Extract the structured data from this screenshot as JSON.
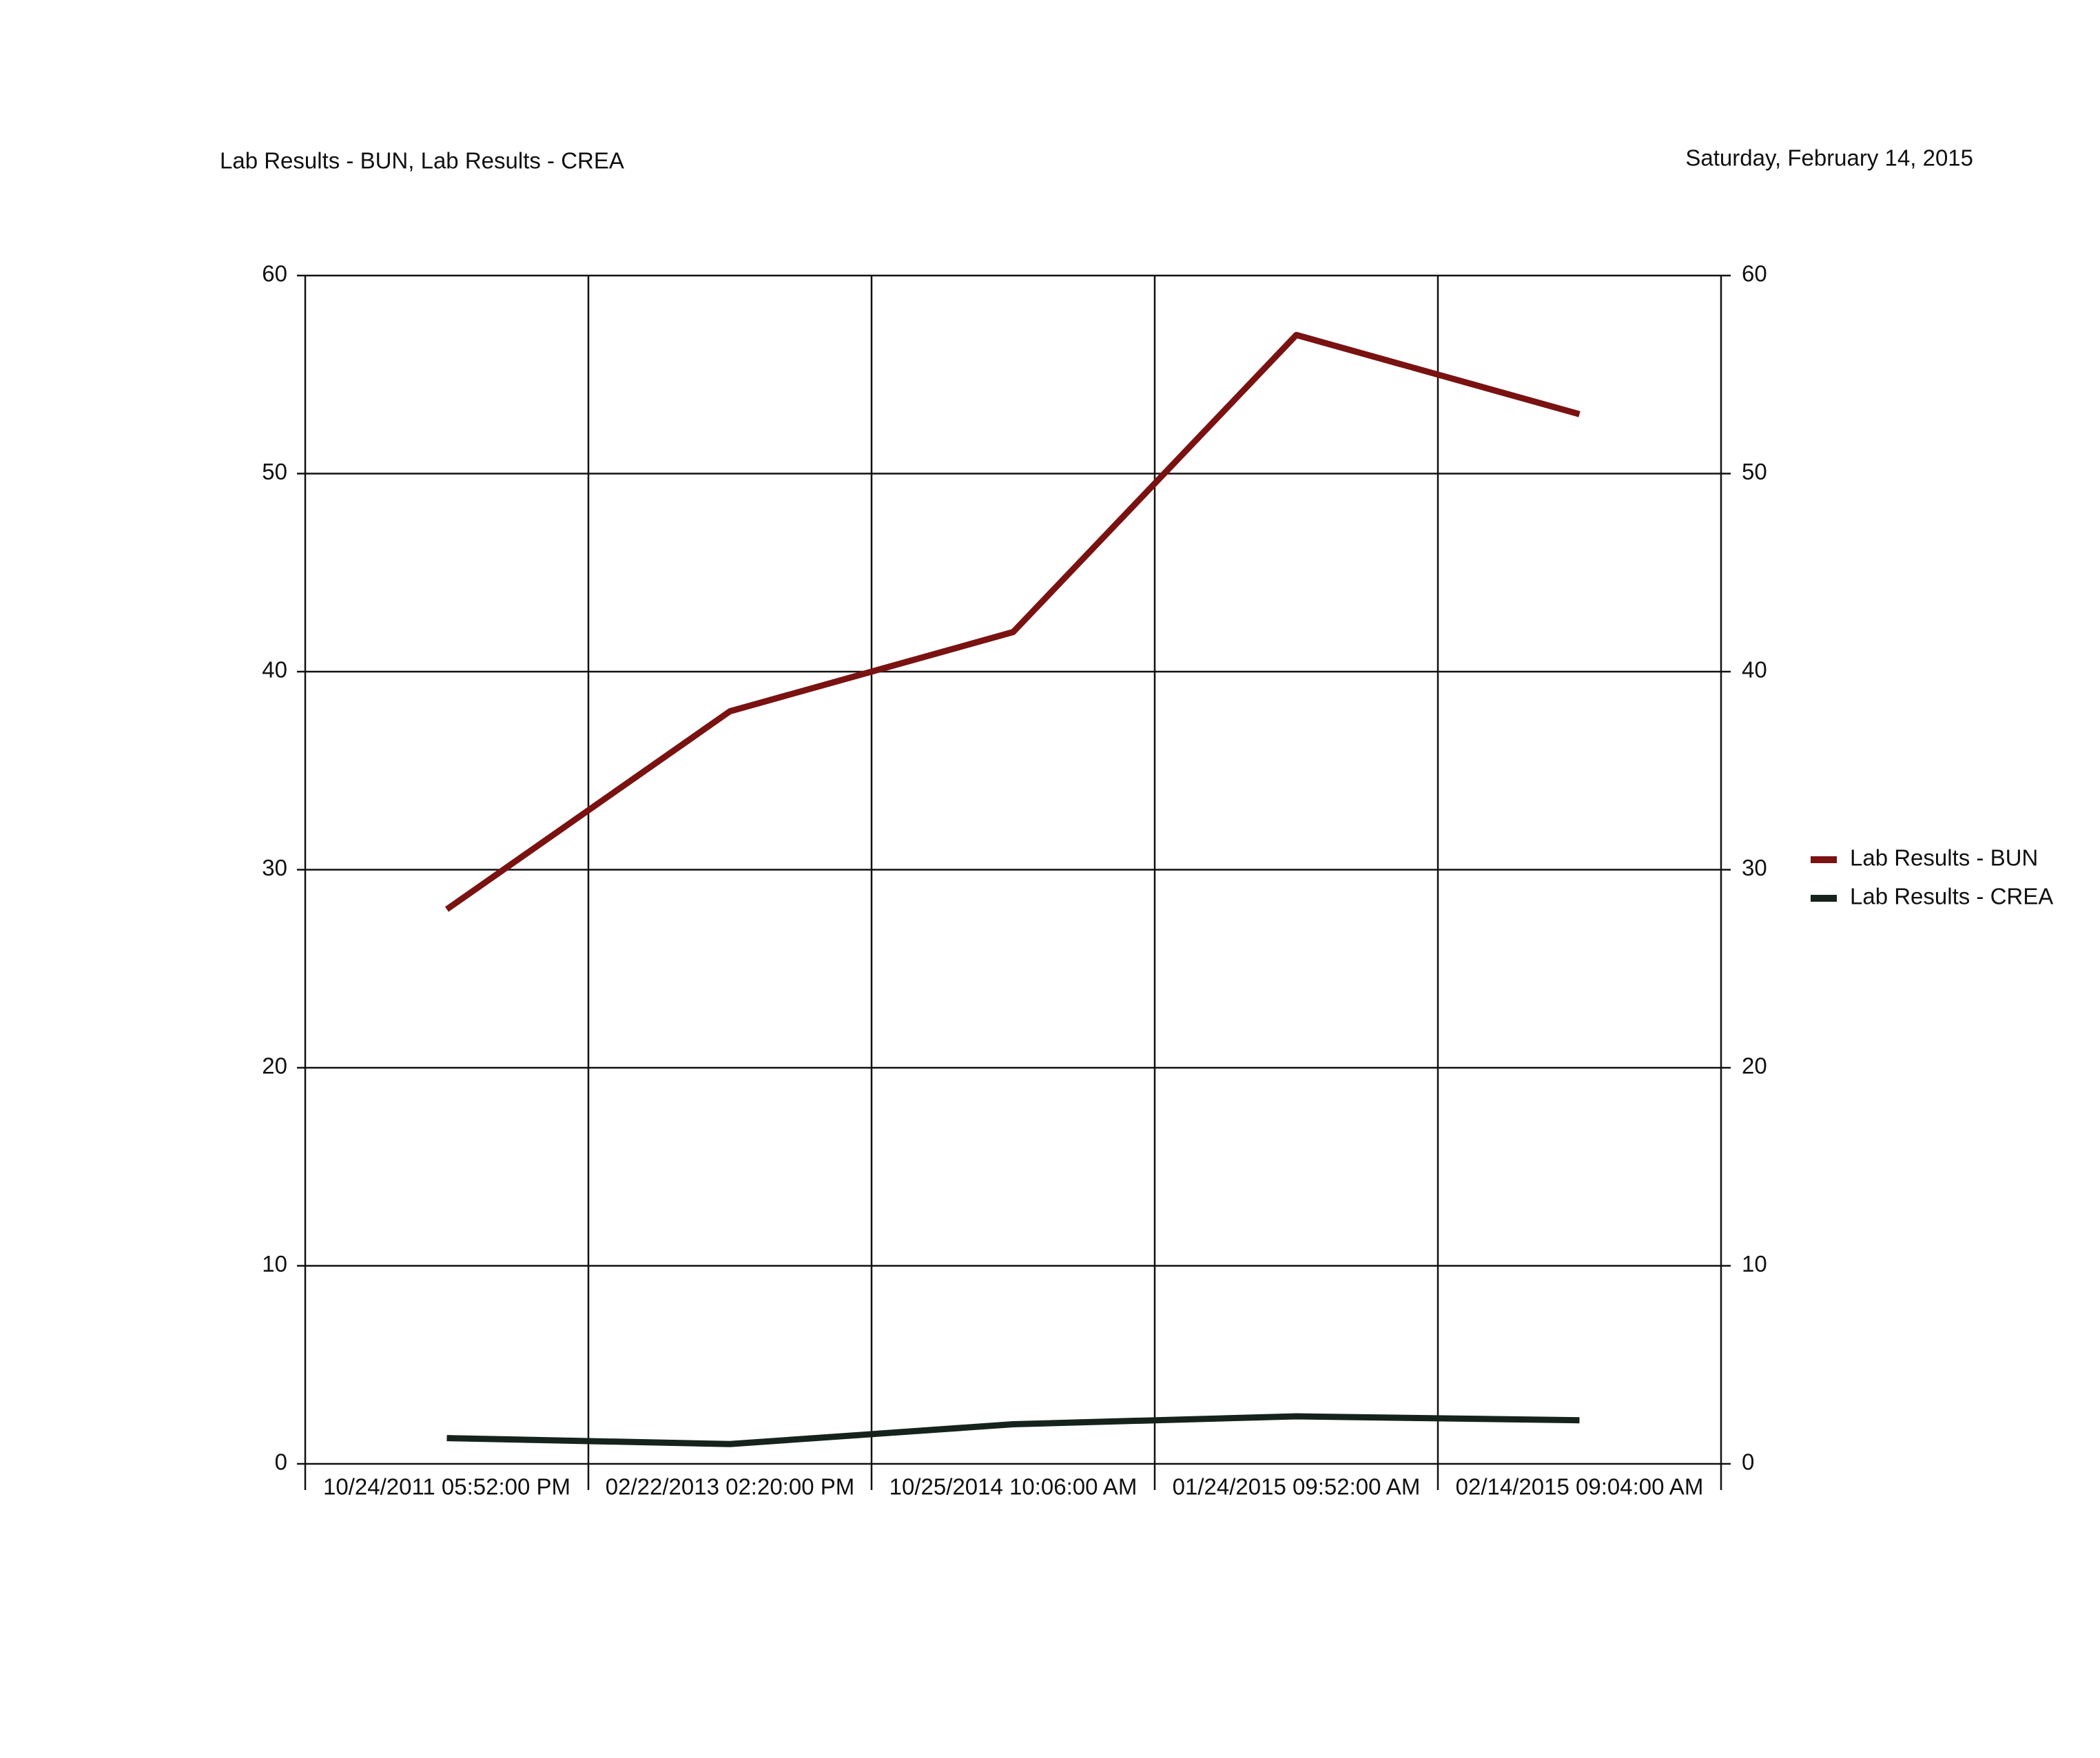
{
  "chart_data": {
    "type": "line",
    "title": "Lab Results - BUN, Lab Results - CREA",
    "subtitle": "Saturday, February 14, 2015",
    "categories": [
      "10/24/2011 05:52:00 PM",
      "02/22/2013 02:20:00 PM",
      "10/25/2014 10:06:00 AM",
      "01/24/2015 09:52:00 AM",
      "02/14/2015 09:04:00 AM"
    ],
    "series": [
      {
        "name": "Lab Results - BUN",
        "color": "#7a1212",
        "values": [
          28,
          38,
          42,
          57,
          53
        ]
      },
      {
        "name": "Lab Results - CREA",
        "color": "#16231c",
        "values": [
          1.3,
          1.0,
          2.0,
          2.4,
          2.2
        ]
      }
    ],
    "ylim": [
      0,
      60
    ],
    "yticks": [
      0,
      10,
      20,
      30,
      40,
      50,
      60
    ],
    "y2lim": [
      0,
      60
    ],
    "y2ticks": [
      0,
      10,
      20,
      30,
      40,
      50,
      60
    ],
    "grid": true,
    "legend": "right"
  }
}
